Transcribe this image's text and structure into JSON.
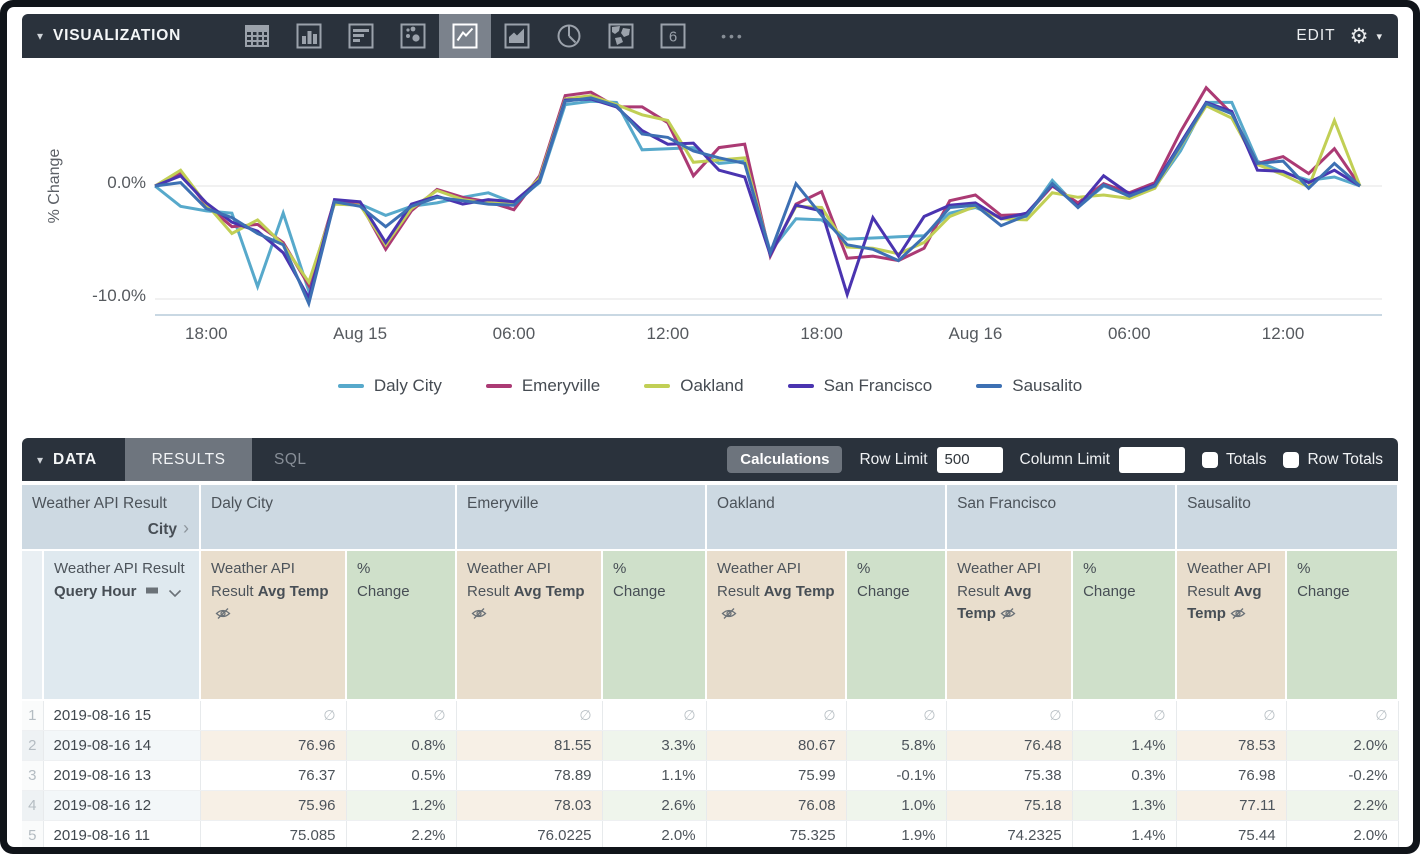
{
  "viz_bar": {
    "collapse_caret": "▾",
    "title": "VISUALIZATION",
    "chart_type_buttons": [
      {
        "name": "table",
        "selected": false
      },
      {
        "name": "bar",
        "selected": false
      },
      {
        "name": "row-bar",
        "selected": false
      },
      {
        "name": "scatter",
        "selected": false
      },
      {
        "name": "line",
        "selected": true
      },
      {
        "name": "area",
        "selected": false
      },
      {
        "name": "pie",
        "selected": false
      },
      {
        "name": "map",
        "selected": false
      },
      {
        "name": "single-value",
        "selected": false
      }
    ],
    "more_icon": "•••",
    "edit_label": "EDIT",
    "settings_icon": "⚙",
    "settings_caret": "▾"
  },
  "chart_data": {
    "type": "line",
    "title": "",
    "ylabel": "% Change",
    "grid": true,
    "legend_position": "bottom",
    "y_axis": {
      "ticks": [
        {
          "label": "0.0%",
          "value": 0
        },
        {
          "label": "-10.0%",
          "value": -10
        }
      ],
      "range": [
        -11.5,
        9.8
      ]
    },
    "x_axis": {
      "unit": "hour",
      "start": "2019-08-14 16:00",
      "end": "2019-08-16 15:00",
      "ticks": [
        {
          "label": "18:00",
          "hour_index": 2
        },
        {
          "label": "Aug 15",
          "hour_index": 8
        },
        {
          "label": "06:00",
          "hour_index": 14
        },
        {
          "label": "12:00",
          "hour_index": 20
        },
        {
          "label": "18:00",
          "hour_index": 26
        },
        {
          "label": "Aug 16",
          "hour_index": 32
        },
        {
          "label": "06:00",
          "hour_index": 38
        },
        {
          "label": "12:00",
          "hour_index": 44
        }
      ]
    },
    "series": [
      {
        "name": "Daly City",
        "color": "#57a9cb",
        "values": [
          0,
          -1.8,
          -2.2,
          -2.4,
          -8.9,
          -2.4,
          -9.3,
          -1.5,
          -1.6,
          -2.6,
          -1.8,
          -1.5,
          -1.0,
          -0.6,
          -1.5,
          0.3,
          7.2,
          7.5,
          7.4,
          3.2,
          3.3,
          3.4,
          2.0,
          2.2,
          -5.8,
          -2.9,
          -3.0,
          -4.7,
          -4.6,
          -4.5,
          -4.4,
          -2.4,
          -1.9,
          -2.8,
          -2.7,
          0.5,
          -1.9,
          0.0,
          -0.8,
          -0.1,
          3.1,
          7.4,
          7.4,
          2.2,
          1.2,
          0.5,
          0.8,
          0.0
        ]
      },
      {
        "name": "Emeryville",
        "color": "#ab3a74",
        "values": [
          0,
          1.2,
          -1.7,
          -3.6,
          -3.4,
          -5.0,
          -8.8,
          -1.3,
          -1.5,
          -5.6,
          -2.2,
          -0.3,
          -1.0,
          -1.4,
          -2.1,
          0.9,
          8.0,
          8.3,
          7.0,
          7.0,
          5.6,
          0.9,
          3.4,
          3.7,
          -6.2,
          -1.6,
          -0.5,
          -6.4,
          -6.2,
          -6.6,
          -5.5,
          -1.3,
          -0.8,
          -2.6,
          -2.5,
          0.0,
          -1.5,
          0.2,
          -0.6,
          0.3,
          4.8,
          8.7,
          6.4,
          2.0,
          2.6,
          1.1,
          3.3,
          0.0
        ]
      },
      {
        "name": "Oakland",
        "color": "#c1cf55",
        "values": [
          0,
          1.4,
          -1.6,
          -4.2,
          -3.0,
          -5.2,
          -8.5,
          -1.6,
          -1.7,
          -5.2,
          -2.0,
          -0.4,
          -1.2,
          -1.5,
          -1.6,
          0.7,
          7.7,
          8.0,
          7.2,
          6.3,
          5.8,
          2.1,
          2.3,
          2.5,
          -6.0,
          -1.8,
          -1.9,
          -5.4,
          -5.5,
          -6.0,
          -5.0,
          -2.7,
          -1.8,
          -2.9,
          -3.0,
          -0.6,
          -1.0,
          -0.8,
          -1.1,
          -0.2,
          3.5,
          7.1,
          6.0,
          1.9,
          1.0,
          -0.1,
          5.8,
          0.0
        ]
      },
      {
        "name": "San Francisco",
        "color": "#4a34b0",
        "values": [
          0,
          0.9,
          -1.5,
          -3.2,
          -4.0,
          -5.9,
          -9.9,
          -1.2,
          -1.4,
          -5.0,
          -1.6,
          -0.9,
          -1.6,
          -1.2,
          -1.4,
          0.5,
          7.6,
          7.7,
          7.0,
          4.9,
          3.7,
          3.8,
          1.4,
          0.8,
          -6.1,
          -1.7,
          -2.2,
          -9.6,
          -2.8,
          -6.2,
          -2.7,
          -1.7,
          -1.5,
          -2.9,
          -2.4,
          0.1,
          -1.8,
          0.9,
          -0.7,
          0.1,
          3.8,
          7.4,
          6.6,
          1.4,
          1.3,
          0.3,
          1.4,
          0.0
        ]
      },
      {
        "name": "Sausalito",
        "color": "#3d70b3",
        "values": [
          0,
          0.3,
          -2.0,
          -2.8,
          -4.2,
          -5.2,
          -10.4,
          -1.4,
          -1.8,
          -3.6,
          -1.8,
          -1.0,
          -1.3,
          -1.6,
          -1.7,
          0.4,
          7.5,
          7.8,
          7.1,
          4.6,
          4.3,
          3.1,
          2.5,
          2.0,
          -5.9,
          0.2,
          -2.6,
          -5.2,
          -5.6,
          -6.6,
          -4.5,
          -1.9,
          -1.7,
          -3.5,
          -2.6,
          0.2,
          -1.9,
          0.1,
          -0.9,
          0.0,
          3.6,
          7.3,
          6.4,
          2.0,
          2.2,
          -0.2,
          2.0,
          0.0
        ]
      }
    ]
  },
  "data_bar": {
    "collapse_caret": "▾",
    "title": "DATA",
    "tabs": [
      {
        "label": "RESULTS",
        "selected": true
      },
      {
        "label": "SQL",
        "selected": false
      }
    ],
    "calculations_label": "Calculations",
    "row_limit_label": "Row Limit",
    "row_limit_value": "500",
    "column_limit_label": "Column Limit",
    "column_limit_value": "",
    "totals_label": "Totals",
    "totals_checked": false,
    "row_totals_label": "Row Totals",
    "row_totals_checked": false
  },
  "table": {
    "dim_group_label": "Weather API Result",
    "dim_group_field": "City",
    "city_chevron": "›",
    "cities": [
      "Daly City",
      "Emeryville",
      "Oakland",
      "San Francisco",
      "Sausalito"
    ],
    "dim_header_prefix": "Weather API Result",
    "dim_header_bold": "Query Hour",
    "measure_prefix": "Weather API Result",
    "measure_bold": "Avg Temp",
    "pct_line1": "%",
    "pct_line2": "Change",
    "null_symbol": "∅",
    "rows": [
      {
        "num": "1",
        "hour": "2019-08-16 15",
        "values": [
          null,
          null,
          null,
          null,
          null,
          null,
          null,
          null,
          null,
          null
        ]
      },
      {
        "num": "2",
        "hour": "2019-08-16 14",
        "values": [
          "76.96",
          "0.8%",
          "81.55",
          "3.3%",
          "80.67",
          "5.8%",
          "76.48",
          "1.4%",
          "78.53",
          "2.0%"
        ]
      },
      {
        "num": "3",
        "hour": "2019-08-16 13",
        "values": [
          "76.37",
          "0.5%",
          "78.89",
          "1.1%",
          "75.99",
          "-0.1%",
          "75.38",
          "0.3%",
          "76.98",
          "-0.2%"
        ]
      },
      {
        "num": "4",
        "hour": "2019-08-16 12",
        "values": [
          "75.96",
          "1.2%",
          "78.03",
          "2.6%",
          "76.08",
          "1.0%",
          "75.18",
          "1.3%",
          "77.11",
          "2.2%"
        ]
      },
      {
        "num": "5",
        "hour": "2019-08-16 11",
        "values": [
          "75.085",
          "2.2%",
          "76.0225",
          "2.0%",
          "75.325",
          "1.9%",
          "74.2325",
          "1.4%",
          "75.44",
          "2.0%"
        ]
      }
    ]
  }
}
